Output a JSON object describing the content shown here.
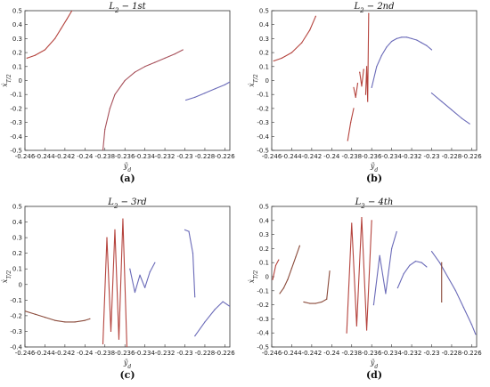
{
  "chart_data": [
    {
      "type": "scatter",
      "title": "L_2 - 1st",
      "caption": "(a)",
      "xlabel": "y_d",
      "ylabel": "ẋ_T/2",
      "xlim": [
        -0.246,
        -0.2255
      ],
      "ylim": [
        -0.5,
        0.5
      ],
      "x_ticks": [
        "-0.246",
        "-0.244",
        "-0.242",
        "-0.24",
        "-0.238",
        "-0.236",
        "-0.234",
        "-0.232",
        "-0.23",
        "-0.228",
        "-0.226"
      ],
      "y_ticks": [
        "-0.5",
        "-0.4",
        "-0.3",
        "-0.2",
        "-0.1",
        "0",
        "0.1",
        "0.2",
        "0.3",
        "0.4",
        "0.5"
      ],
      "grid": false,
      "series": [
        {
          "color": "#b5443e",
          "x": [
            -0.2458,
            -0.245,
            -0.244,
            -0.243,
            -0.2424,
            -0.2418,
            -0.2413
          ],
          "y": [
            0.16,
            0.18,
            0.22,
            0.3,
            0.37,
            0.44,
            0.5
          ]
        },
        {
          "color": "#a7505a",
          "x": [
            -0.2382,
            -0.238,
            -0.2375,
            -0.237,
            -0.236,
            -0.235,
            -0.234,
            -0.233,
            -0.232,
            -0.231,
            -0.2302
          ],
          "y": [
            -0.5,
            -0.35,
            -0.2,
            -0.1,
            0.0,
            0.06,
            0.1,
            0.13,
            0.16,
            0.19,
            0.22
          ]
        },
        {
          "color": "#6a6ab8",
          "x": [
            -0.2299,
            -0.229,
            -0.228,
            -0.227,
            -0.226,
            -0.2255
          ],
          "y": [
            -0.14,
            -0.12,
            -0.09,
            -0.06,
            -0.03,
            -0.01
          ]
        }
      ]
    },
    {
      "type": "scatter",
      "title": "L_2 - 2nd",
      "caption": "(b)",
      "xlabel": "y_d",
      "ylabel": "ẋ_T/2",
      "xlim": [
        -0.246,
        -0.2255
      ],
      "ylim": [
        -0.5,
        0.5
      ],
      "x_ticks": [
        "-0.246",
        "-0.244",
        "-0.242",
        "-0.24",
        "-0.238",
        "-0.236",
        "-0.234",
        "-0.232",
        "-0.23",
        "-0.228",
        "-0.226"
      ],
      "y_ticks": [
        "-0.5",
        "-0.4",
        "-0.3",
        "-0.2",
        "-0.1",
        "0",
        "0.1",
        "0.2",
        "0.3",
        "0.4",
        "0.5"
      ],
      "grid": false,
      "series": [
        {
          "color": "#b5443e",
          "x": [
            -0.2458,
            -0.245,
            -0.244,
            -0.243,
            -0.2422,
            -0.2416
          ],
          "y": [
            0.14,
            0.16,
            0.2,
            0.27,
            0.36,
            0.46
          ]
        },
        {
          "color": "#b5443e",
          "x": [
            -0.2384,
            -0.2381,
            -0.2378
          ],
          "y": [
            -0.43,
            -0.3,
            -0.2
          ]
        },
        {
          "color": "#b5443e",
          "x": [
            -0.2378,
            -0.2376,
            -0.2374
          ],
          "y": [
            -0.05,
            -0.12,
            -0.02
          ]
        },
        {
          "color": "#b5443e",
          "x": [
            -0.2372,
            -0.237,
            -0.2368
          ],
          "y": [
            0.06,
            -0.04,
            0.08
          ]
        },
        {
          "color": "#b5443e",
          "x": [
            -0.2366,
            -0.2365,
            -0.2364,
            -0.2363
          ],
          "y": [
            -0.1,
            0.1,
            -0.15,
            0.48
          ]
        },
        {
          "color": "#6a6ab8",
          "x": [
            -0.236,
            -0.2355,
            -0.235,
            -0.2345,
            -0.234,
            -0.2335,
            -0.233,
            -0.2325,
            -0.232,
            -0.2315,
            -0.231,
            -0.2305,
            -0.23
          ],
          "y": [
            -0.05,
            0.1,
            0.18,
            0.24,
            0.28,
            0.3,
            0.31,
            0.31,
            0.3,
            0.29,
            0.27,
            0.25,
            0.22
          ]
        },
        {
          "color": "#6a6ab8",
          "x": [
            -0.23,
            -0.229,
            -0.228,
            -0.227,
            -0.2262
          ],
          "y": [
            -0.09,
            -0.15,
            -0.21,
            -0.27,
            -0.31
          ]
        }
      ]
    },
    {
      "type": "scatter",
      "title": "L_2 - 3rd",
      "caption": "(c)",
      "xlabel": "y_d",
      "ylabel": "ẋ_T/2",
      "xlim": [
        -0.246,
        -0.2255
      ],
      "ylim": [
        -0.4,
        0.5
      ],
      "x_ticks": [
        "-0.246",
        "-0.244",
        "-0.242",
        "-0.24",
        "-0.238",
        "-0.236",
        "-0.234",
        "-0.232",
        "-0.23",
        "-0.228",
        "-0.226"
      ],
      "y_ticks": [
        "-0.4",
        "-0.3",
        "-0.2",
        "-0.1",
        "0",
        "0.1",
        "0.2",
        "0.3",
        "0.4",
        "0.5"
      ],
      "grid": false,
      "series": [
        {
          "color": "#8a4a3a",
          "x": [
            -0.246,
            -0.245,
            -0.244,
            -0.243,
            -0.242,
            -0.241,
            -0.24,
            -0.2395
          ],
          "y": [
            -0.17,
            -0.19,
            -0.21,
            -0.23,
            -0.24,
            -0.24,
            -0.23,
            -0.22
          ]
        },
        {
          "color": "#b5443e",
          "x": [
            -0.2382,
            -0.2378,
            -0.2374,
            -0.237,
            -0.2366,
            -0.2362,
            -0.2358
          ],
          "y": [
            -0.38,
            0.3,
            -0.3,
            0.35,
            -0.35,
            0.42,
            -0.4
          ]
        },
        {
          "color": "#6a6ab8",
          "x": [
            -0.2355,
            -0.235,
            -0.2345,
            -0.234,
            -0.2335,
            -0.233
          ],
          "y": [
            0.1,
            -0.05,
            0.06,
            -0.02,
            0.08,
            0.14
          ]
        },
        {
          "color": "#6a6ab8",
          "x": [
            -0.23,
            -0.2296,
            -0.2292,
            -0.229
          ],
          "y": [
            0.35,
            0.34,
            0.2,
            -0.08
          ]
        },
        {
          "color": "#6a6ab8",
          "x": [
            -0.229,
            -0.228,
            -0.227,
            -0.2262,
            -0.2255
          ],
          "y": [
            -0.33,
            -0.24,
            -0.16,
            -0.11,
            -0.14
          ]
        }
      ]
    },
    {
      "type": "scatter",
      "title": "L_2 - 4th",
      "caption": "(d)",
      "xlabel": "y_d",
      "ylabel": "ẋ_T/2",
      "xlim": [
        -0.246,
        -0.2255
      ],
      "ylim": [
        -0.5,
        0.5
      ],
      "x_ticks": [
        "-0.246",
        "-0.244",
        "-0.242",
        "-0.24",
        "-0.238",
        "-0.236",
        "-0.234",
        "-0.232",
        "-0.23",
        "-0.228",
        "-0.226"
      ],
      "y_ticks": [
        "-0.5",
        "-0.4",
        "-0.3",
        "-0.2",
        "-0.1",
        "0",
        "0.1",
        "0.2",
        "0.3",
        "0.4",
        "0.5"
      ],
      "grid": false,
      "series": [
        {
          "color": "#b5443e",
          "x": [
            -0.2459,
            -0.2456,
            -0.2453
          ],
          "y": [
            -0.02,
            0.08,
            0.12
          ]
        },
        {
          "color": "#8a4a3a",
          "x": [
            -0.2452,
            -0.2448,
            -0.2444,
            -0.244,
            -0.2436,
            -0.2432
          ],
          "y": [
            -0.12,
            -0.08,
            -0.02,
            0.06,
            0.14,
            0.22
          ]
        },
        {
          "color": "#8a4a3a",
          "x": [
            -0.2428,
            -0.2422,
            -0.2416,
            -0.241,
            -0.2405,
            -0.2402
          ],
          "y": [
            -0.18,
            -0.19,
            -0.19,
            -0.18,
            -0.16,
            0.04
          ]
        },
        {
          "color": "#b5443e",
          "x": [
            -0.2385,
            -0.238,
            -0.2375,
            -0.237,
            -0.2365,
            -0.236
          ],
          "y": [
            -0.4,
            0.38,
            -0.35,
            0.42,
            -0.38,
            0.4
          ]
        },
        {
          "color": "#6a6ab8",
          "x": [
            -0.2358,
            -0.2352,
            -0.2346,
            -0.234,
            -0.2335
          ],
          "y": [
            -0.2,
            0.15,
            -0.12,
            0.2,
            0.32
          ]
        },
        {
          "color": "#6a6ab8",
          "x": [
            -0.2334,
            -0.2328,
            -0.2322,
            -0.2316,
            -0.231,
            -0.2305
          ],
          "y": [
            -0.08,
            0.02,
            0.08,
            0.11,
            0.1,
            0.07
          ]
        },
        {
          "color": "#6a6ab8",
          "x": [
            -0.23,
            -0.2292,
            -0.2284,
            -0.2276,
            -0.2268,
            -0.226,
            -0.2256
          ],
          "y": [
            0.18,
            0.1,
            0.0,
            -0.1,
            -0.22,
            -0.34,
            -0.41
          ]
        },
        {
          "color": "#8a4a3a",
          "x": [
            -0.229,
            -0.229
          ],
          "y": [
            -0.18,
            0.1
          ]
        }
      ]
    }
  ]
}
